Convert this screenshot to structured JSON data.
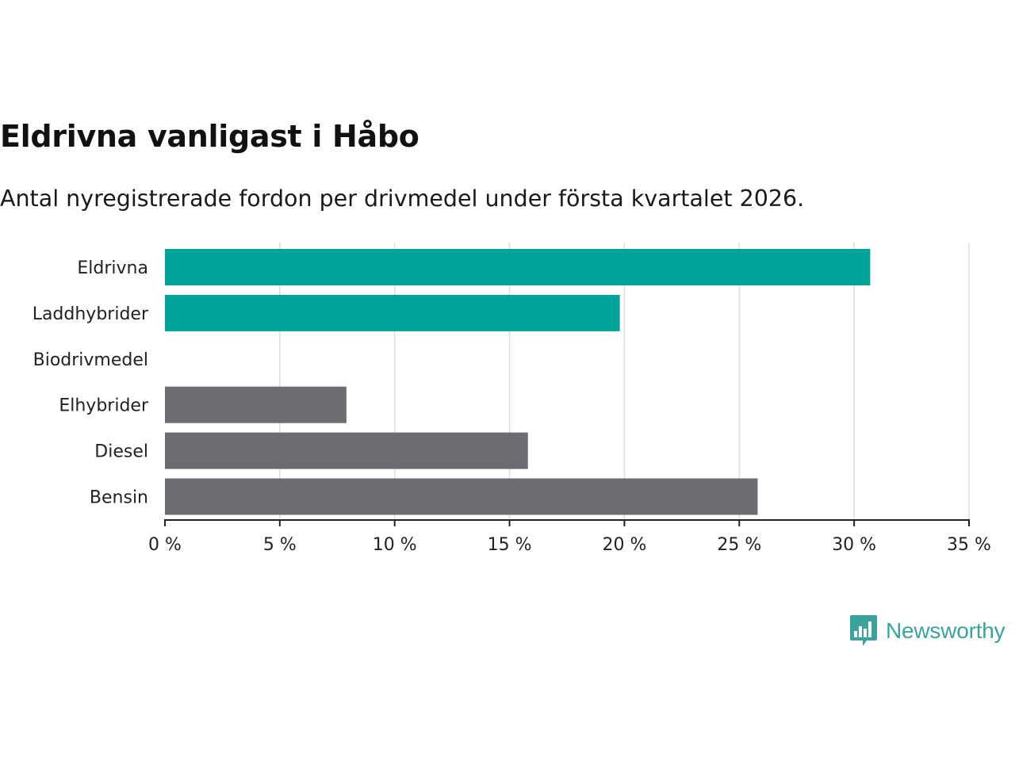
{
  "title": "Eldrivna vanligast i Håbo",
  "subtitle": "Antal nyregistrerade fordon per drivmedel under första kvartalet 2026.",
  "brand": {
    "name": "Newsworthy",
    "color": "#3aa39b",
    "icon": "bar-chart-speech-bubble-icon"
  },
  "colors": {
    "highlight": "#00a39a",
    "other": "#6d6c72",
    "grid": "#dddddd",
    "axis": "#222222"
  },
  "chart_data": {
    "type": "bar",
    "orientation": "horizontal",
    "categories": [
      "Eldrivna",
      "Laddhybrider",
      "Biodrivmedel",
      "Elhybrider",
      "Diesel",
      "Bensin"
    ],
    "values": [
      30.7,
      19.8,
      0,
      7.9,
      15.8,
      25.8
    ],
    "highlighted": [
      true,
      true,
      false,
      false,
      false,
      false
    ],
    "unit": "%",
    "xlim": [
      0,
      35
    ],
    "xticks": [
      0,
      5,
      10,
      15,
      20,
      25,
      30,
      35
    ],
    "xtick_labels": [
      "0 %",
      "5 %",
      "10 %",
      "15 %",
      "20 %",
      "25 %",
      "30 %",
      "35 %"
    ],
    "xlabel": "",
    "ylabel": "",
    "grid": "vertical",
    "legend": "none"
  }
}
